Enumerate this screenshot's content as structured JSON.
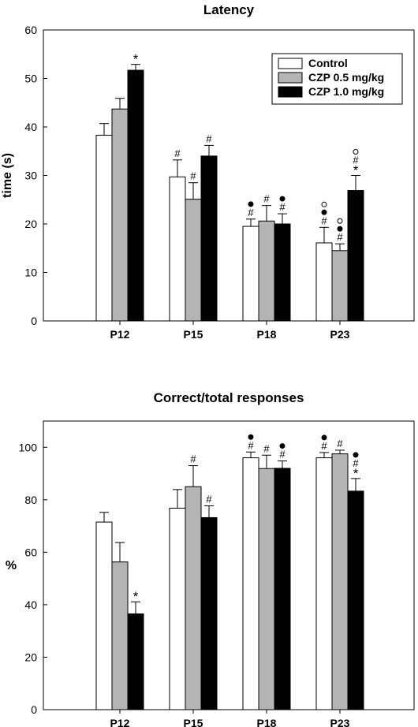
{
  "chart_data": [
    {
      "type": "bar",
      "title": "Latency",
      "ylabel": "time (s)",
      "ylim": [
        0,
        60
      ],
      "yticks": [
        0,
        10,
        20,
        30,
        40,
        50,
        60
      ],
      "categories": [
        "P12",
        "P15",
        "P18",
        "P23"
      ],
      "legend": "top-right",
      "series": [
        {
          "name": "Control",
          "color": "#ffffff",
          "values": [
            38.3,
            29.7,
            19.5,
            16.1
          ],
          "errors": [
            2.4,
            3.5,
            1.5,
            3.2
          ],
          "annotations": [
            [],
            [
              "#"
            ],
            [
              "#",
              "●"
            ],
            [
              "#",
              "●",
              "○"
            ]
          ]
        },
        {
          "name": "CZP 0.5 mg/kg",
          "color": "#b4b4b4",
          "values": [
            43.7,
            25.1,
            20.6,
            14.5
          ],
          "errors": [
            2.2,
            3.4,
            3.2,
            1.4
          ],
          "annotations": [
            [],
            [
              "#"
            ],
            [
              "#"
            ],
            [
              "#",
              "●",
              "○"
            ]
          ]
        },
        {
          "name": "CZP 1.0 mg/kg",
          "color": "#000000",
          "values": [
            51.7,
            34.0,
            20.0,
            26.9
          ],
          "errors": [
            1.2,
            2.2,
            2.1,
            3.1
          ],
          "annotations": [
            [
              "*"
            ],
            [
              "#"
            ],
            [
              "#",
              "●"
            ],
            [
              "*",
              "#",
              "○"
            ]
          ]
        }
      ]
    },
    {
      "type": "bar",
      "title": "Correct/total responses",
      "ylabel": "%",
      "ylim": [
        0,
        110
      ],
      "yticks": [
        0,
        20,
        40,
        60,
        80,
        100
      ],
      "categories": [
        "P12",
        "P15",
        "P18",
        "P23"
      ],
      "series": [
        {
          "name": "Control",
          "color": "#ffffff",
          "values": [
            71.5,
            76.8,
            96.0,
            96.0
          ],
          "errors": [
            3.7,
            7.1,
            2.2,
            2.0
          ],
          "annotations": [
            [],
            [],
            [
              "#",
              "●"
            ],
            [
              "#",
              "●"
            ]
          ]
        },
        {
          "name": "CZP 0.5 mg/kg",
          "color": "#b4b4b4",
          "values": [
            56.3,
            85.0,
            91.9,
            97.5
          ],
          "errors": [
            7.4,
            8.0,
            5.1,
            1.4
          ],
          "annotations": [
            [],
            [
              "#"
            ],
            [
              "#"
            ],
            [
              "#"
            ]
          ]
        },
        {
          "name": "CZP 1.0 mg/kg",
          "color": "#000000",
          "values": [
            36.5,
            73.2,
            92.0,
            83.3
          ],
          "errors": [
            4.6,
            4.5,
            2.8,
            4.8
          ],
          "annotations": [
            [
              "*"
            ],
            [
              "#"
            ],
            [
              "#",
              "●"
            ],
            [
              "*",
              "#",
              "●"
            ]
          ]
        }
      ]
    }
  ]
}
